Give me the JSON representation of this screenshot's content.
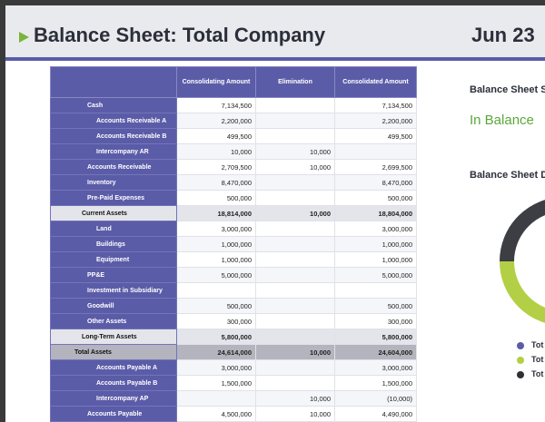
{
  "header": {
    "title": "Balance Sheet: Total Company",
    "date": "Jun 23"
  },
  "table": {
    "columns": [
      "Consolidating Amount",
      "Elimination",
      "Consolidated Amount"
    ],
    "rows": [
      {
        "label": "Cash",
        "indent": 1,
        "type": "normal",
        "values": [
          "7,134,500",
          "",
          "7,134,500"
        ]
      },
      {
        "label": "Accounts Receivable A",
        "indent": 2,
        "type": "normal",
        "values": [
          "2,200,000",
          "",
          "2,200,000"
        ]
      },
      {
        "label": "Accounts Receivable B",
        "indent": 2,
        "type": "normal",
        "values": [
          "499,500",
          "",
          "499,500"
        ]
      },
      {
        "label": "Intercompany AR",
        "indent": 2,
        "type": "normal",
        "values": [
          "10,000",
          "10,000",
          ""
        ]
      },
      {
        "label": "Accounts Receivable",
        "indent": 1,
        "type": "normal",
        "values": [
          "2,709,500",
          "10,000",
          "2,699,500"
        ]
      },
      {
        "label": "Inventory",
        "indent": 1,
        "type": "normal",
        "values": [
          "8,470,000",
          "",
          "8,470,000"
        ]
      },
      {
        "label": "Pre-Paid Expenses",
        "indent": 1,
        "type": "normal",
        "values": [
          "500,000",
          "",
          "500,000"
        ]
      },
      {
        "label": "Current Assets",
        "indent": 0,
        "type": "subtotal",
        "values": [
          "18,814,000",
          "10,000",
          "18,804,000"
        ]
      },
      {
        "label": "Land",
        "indent": 2,
        "type": "normal",
        "values": [
          "3,000,000",
          "",
          "3,000,000"
        ]
      },
      {
        "label": "Buildings",
        "indent": 2,
        "type": "normal",
        "values": [
          "1,000,000",
          "",
          "1,000,000"
        ]
      },
      {
        "label": "Equipment",
        "indent": 2,
        "type": "normal",
        "values": [
          "1,000,000",
          "",
          "1,000,000"
        ]
      },
      {
        "label": "PP&E",
        "indent": 1,
        "type": "normal",
        "values": [
          "5,000,000",
          "",
          "5,000,000"
        ]
      },
      {
        "label": "Investment in Subsidiary",
        "indent": 1,
        "type": "normal",
        "values": [
          "",
          "",
          ""
        ]
      },
      {
        "label": "Goodwill",
        "indent": 1,
        "type": "normal",
        "values": [
          "500,000",
          "",
          "500,000"
        ]
      },
      {
        "label": "Other Assets",
        "indent": 1,
        "type": "normal",
        "values": [
          "300,000",
          "",
          "300,000"
        ]
      },
      {
        "label": "Long-Term Assets",
        "indent": 0,
        "type": "subtotal",
        "values": [
          "5,800,000",
          "",
          "5,800,000"
        ]
      },
      {
        "label": "Total Assets",
        "indent": 0,
        "type": "total",
        "values": [
          "24,614,000",
          "10,000",
          "24,604,000"
        ]
      },
      {
        "label": "Accounts Payable A",
        "indent": 2,
        "type": "normal",
        "values": [
          "3,000,000",
          "",
          "3,000,000"
        ]
      },
      {
        "label": "Accounts Payable B",
        "indent": 2,
        "type": "normal",
        "values": [
          "1,500,000",
          "",
          "1,500,000"
        ]
      },
      {
        "label": "Intercompany AP",
        "indent": 2,
        "type": "normal",
        "values": [
          "",
          "10,000",
          "(10,000)"
        ]
      },
      {
        "label": "Accounts Payable",
        "indent": 1,
        "type": "normal",
        "values": [
          "4,500,000",
          "10,000",
          "4,490,000"
        ]
      }
    ]
  },
  "summary": {
    "title": "Balance Sheet S",
    "status": "In Balance",
    "status_color": "#5aa83a"
  },
  "donut": {
    "title": "Balance Sheet D",
    "colors": [
      "#3d3e44",
      "#b3cf45",
      "#6264b2"
    ],
    "legend": [
      {
        "label": "Tot",
        "color": "#5b5ca8",
        "icon": "circle-dot"
      },
      {
        "label": "Tot",
        "color": "#b3cf45",
        "icon": "circle-dot"
      },
      {
        "label": "Tot",
        "color": "#2e2f33",
        "icon": "circle-dot"
      }
    ]
  }
}
